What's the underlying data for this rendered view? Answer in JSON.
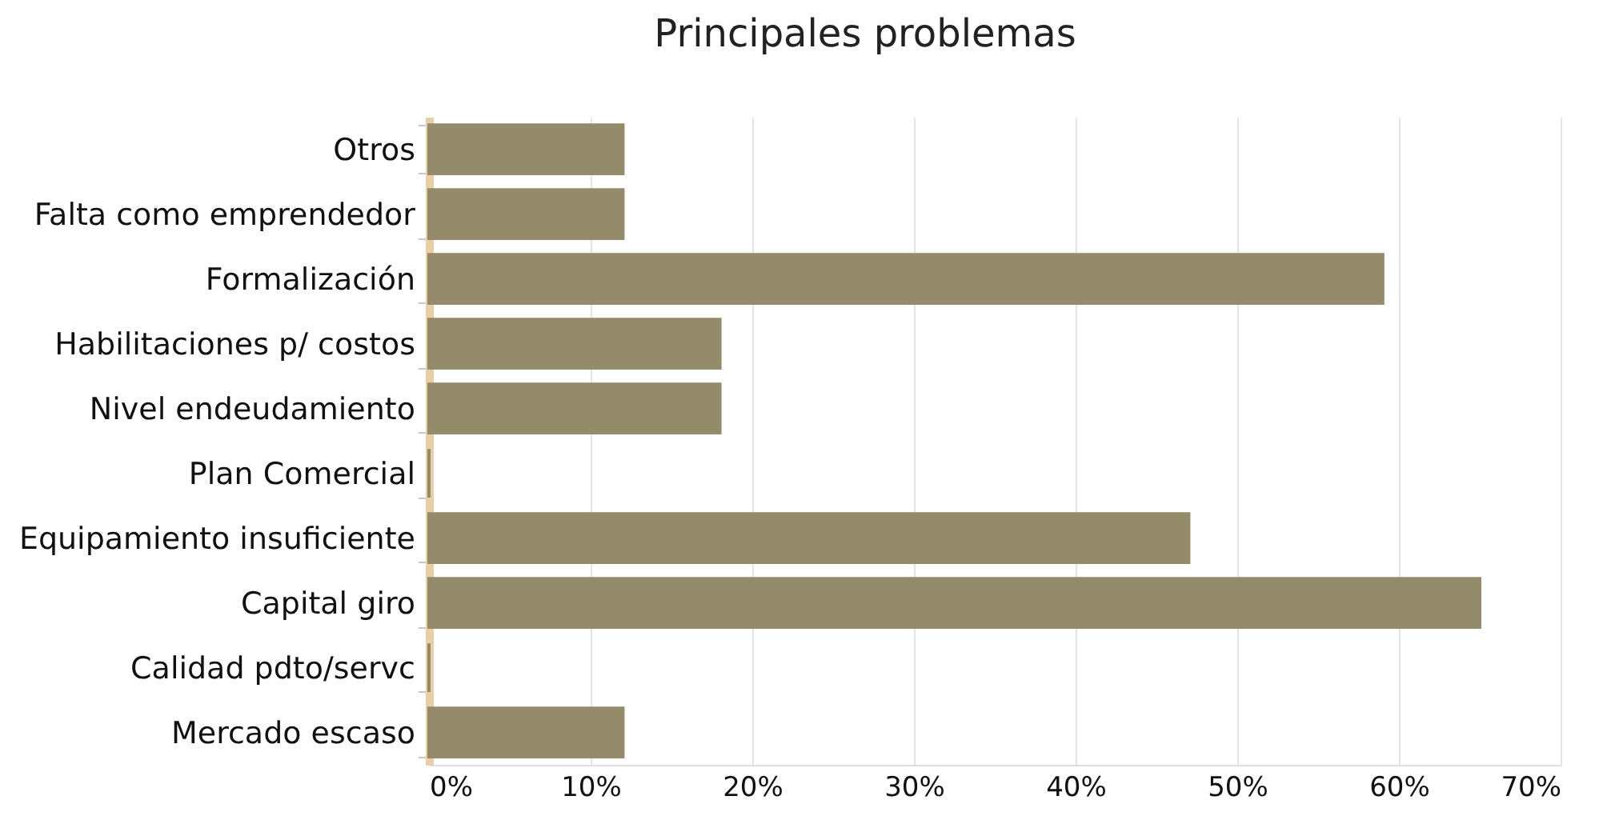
{
  "chart_data": {
    "type": "bar",
    "orientation": "horizontal",
    "title": "Principales problemas",
    "categories": [
      "Otros",
      "Falta como emprendedor",
      "Formalización",
      "Habilitaciones p/ costos",
      "Nivel endeudamiento",
      "Plan Comercial",
      "Equipamiento insuficiente",
      "Capital giro",
      "Calidad pdto/servc",
      "Mercado escaso"
    ],
    "values": [
      12,
      12,
      59,
      18,
      18,
      0,
      47,
      65,
      0,
      12
    ],
    "color": "#948b6a",
    "xlim": [
      0,
      70
    ],
    "xticks": [
      {
        "value": 0,
        "label": "0%"
      },
      {
        "value": 10,
        "label": "10%"
      },
      {
        "value": 20,
        "label": "20%"
      },
      {
        "value": 30,
        "label": "30%"
      },
      {
        "value": 40,
        "label": "40%"
      },
      {
        "value": 50,
        "label": "50%"
      },
      {
        "value": 60,
        "label": "60%"
      },
      {
        "value": 70,
        "label": "70%"
      }
    ],
    "grid": "x"
  }
}
